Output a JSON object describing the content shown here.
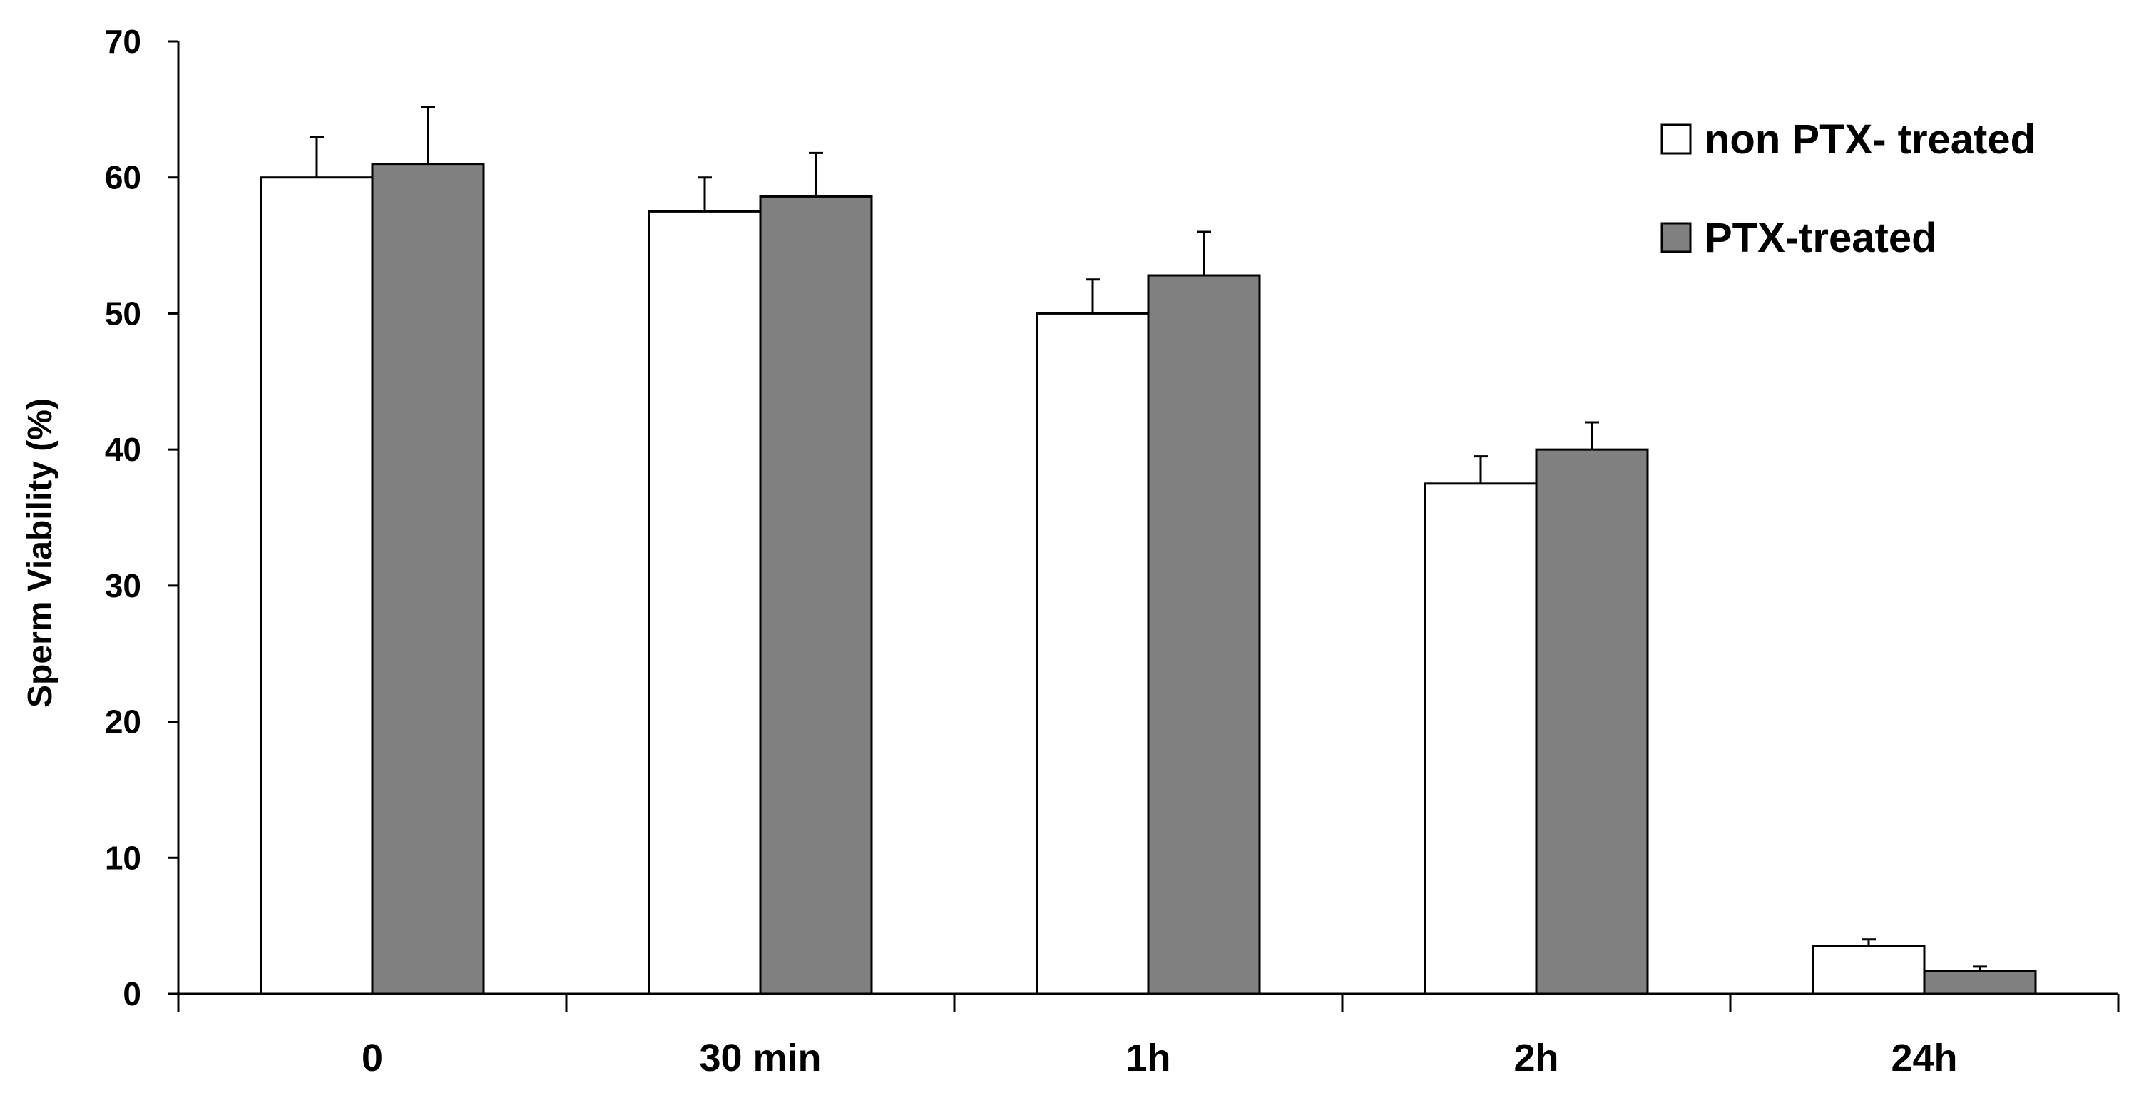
{
  "chart_data": {
    "type": "bar",
    "title": "",
    "xlabel": "",
    "ylabel": "Sperm Viability (%)",
    "ylim": [
      0,
      70
    ],
    "yticks": [
      0,
      10,
      20,
      30,
      40,
      50,
      60,
      70
    ],
    "categories": [
      "0",
      "30 min",
      "1h",
      "2h",
      "24h"
    ],
    "series": [
      {
        "name": "non PTX- treated",
        "color": "#ffffff",
        "values": [
          60,
          57.5,
          50,
          37.5,
          3.5
        ],
        "errors": [
          3,
          2.5,
          2.5,
          2,
          0.5
        ]
      },
      {
        "name": "PTX-treated",
        "color": "#808080",
        "values": [
          61,
          58.6,
          52.8,
          40,
          1.7
        ],
        "errors": [
          4.2,
          3.2,
          3.2,
          2,
          0.3
        ]
      }
    ],
    "grid": false,
    "legend_position": "top-right"
  }
}
